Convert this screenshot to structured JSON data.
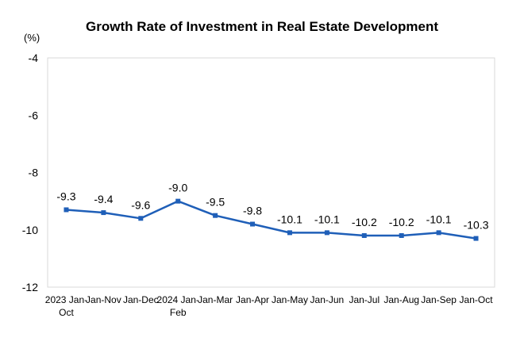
{
  "chart_data": {
    "type": "line",
    "title": "Growth Rate of Investment in Real Estate Development",
    "ylabel": "(%)",
    "xlabel": "",
    "categories": [
      [
        "2023 Jan-",
        "Oct"
      ],
      [
        "Jan-Nov"
      ],
      [
        "Jan-Dec"
      ],
      [
        "2024 Jan-",
        "Feb"
      ],
      [
        "Jan-Mar"
      ],
      [
        "Jan-Apr"
      ],
      [
        "Jan-May"
      ],
      [
        "Jan-Jun"
      ],
      [
        "Jan-Jul"
      ],
      [
        "Jan-Aug"
      ],
      [
        "Jan-Sep"
      ],
      [
        "Jan-Oct"
      ]
    ],
    "series": [
      {
        "values": [
          -9.3,
          -9.4,
          -9.6,
          -9.0,
          -9.5,
          -9.8,
          -10.1,
          -10.1,
          -10.2,
          -10.2,
          -10.1,
          -10.3
        ],
        "data_labels": [
          "-9.3",
          "-9.4",
          "-9.6",
          "-9.0",
          "-9.5",
          "-9.8",
          "-10.1",
          "-10.1",
          "-10.2",
          "-10.2",
          "-10.1",
          "-10.3"
        ],
        "color": "#1f5fb8"
      }
    ],
    "ylim": [
      -12,
      -4
    ],
    "yticks": [
      -4,
      -6,
      -8,
      -10,
      -12
    ],
    "ytick_labels": [
      "-4",
      "-6",
      "-8",
      "-10",
      "-12"
    ],
    "grid": false,
    "marker": "square",
    "axis_color": "#d9d9d9"
  }
}
